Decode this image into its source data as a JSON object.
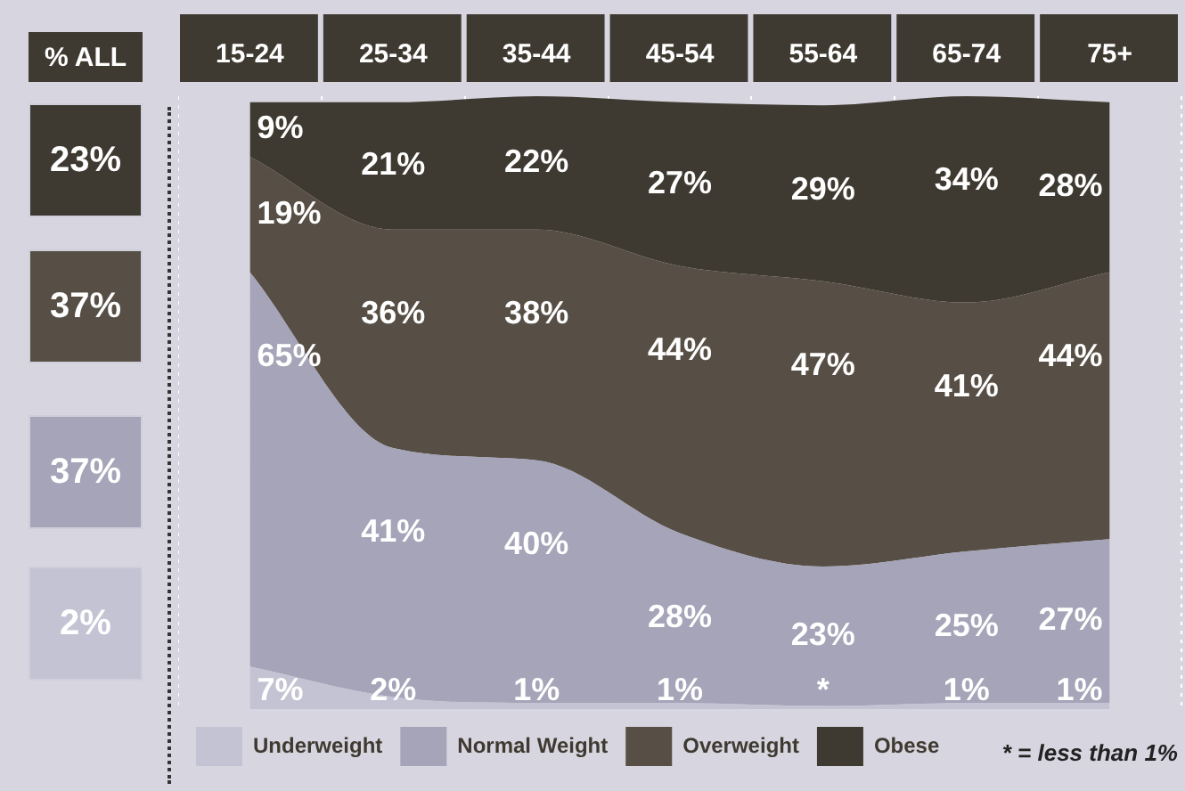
{
  "chart_data": [
    {
      "type": "other",
      "title": "% ALL",
      "annotations": [
        "23%",
        "37%",
        "37%",
        "2%"
      ]
    },
    {
      "type": "area",
      "stacked": true,
      "categories": [
        "15-24",
        "25-34",
        "35-44",
        "45-54",
        "55-64",
        "65-74",
        "75+"
      ],
      "grid": "x",
      "legend": "bottom",
      "annotations": [
        "* = less than 1%"
      ],
      "series": [
        {
          "name": "Underweight",
          "color": "#c4c3d3",
          "values": [
            7,
            2,
            1,
            1,
            0.5,
            1,
            1
          ],
          "value_labels": [
            "7%",
            "2%",
            "1%",
            "1%",
            "*",
            "1%",
            "1%"
          ]
        },
        {
          "name": "Normal Weight",
          "color": "#a5a4b8",
          "values": [
            65,
            41,
            40,
            28,
            23,
            25,
            27
          ],
          "value_labels": [
            "65%",
            "41%",
            "40%",
            "28%",
            "23%",
            "25%",
            "27%"
          ]
        },
        {
          "name": "Overweight",
          "color": "#574f45",
          "values": [
            19,
            36,
            38,
            44,
            47,
            41,
            44
          ],
          "value_labels": [
            "19%",
            "36%",
            "38%",
            "44%",
            "47%",
            "41%",
            "44%"
          ]
        },
        {
          "name": "Obese",
          "color": "#3f3a31",
          "values": [
            9,
            21,
            22,
            27,
            29,
            34,
            28
          ],
          "value_labels": [
            "9%",
            "21%",
            "22%",
            "27%",
            "29%",
            "34%",
            "28%"
          ]
        }
      ]
    }
  ]
}
